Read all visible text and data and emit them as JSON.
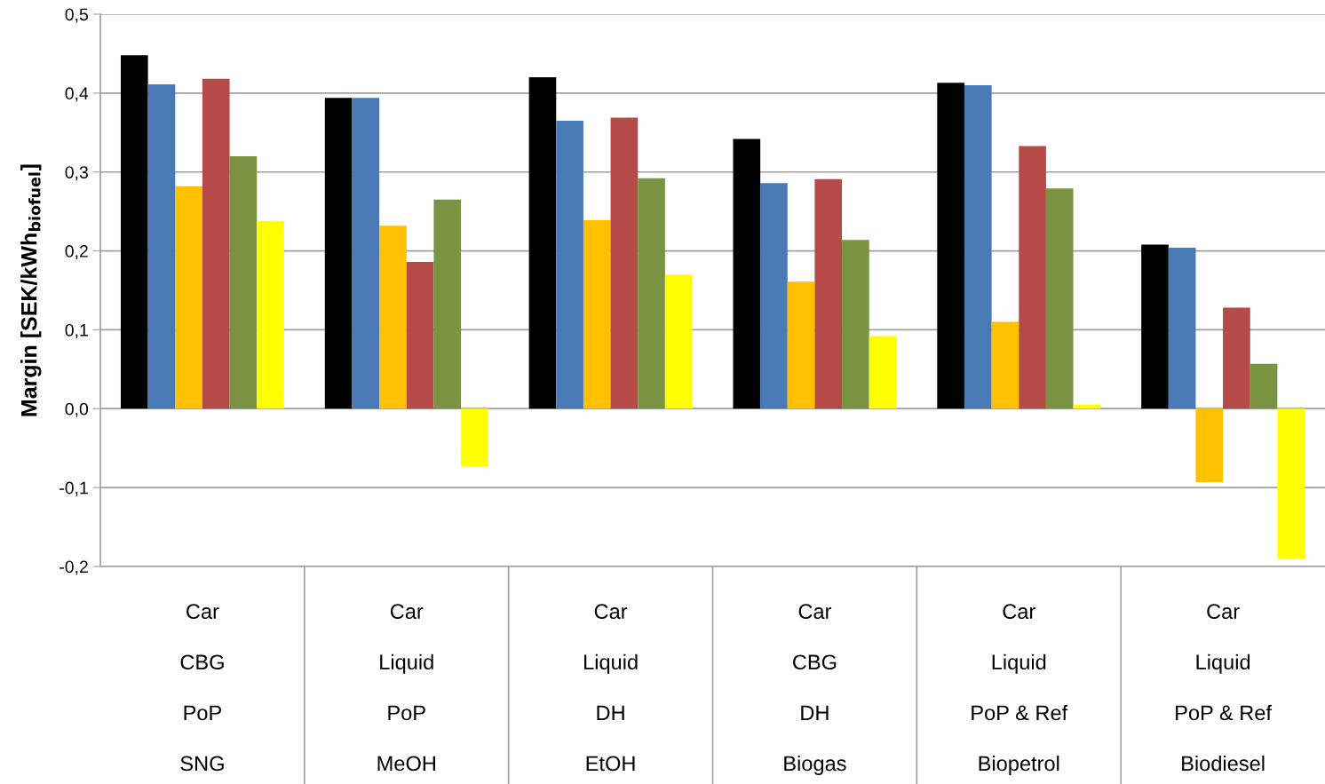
{
  "chart_data": {
    "type": "bar",
    "ylabel": "Margin [SEK/kWh$_{biofuel}$]",
    "categories": [
      "Car\nCBG\nPoP\nSNG",
      "Car\nLiquid\nPoP\nMeOH",
      "Car\nLiquid\nDH\nEtOH",
      "Car\nCBG\nDH\nBiogas",
      "Car\nLiquid\nPoP & Ref\nBiopetrol",
      "Car\nLiquid\nPoP & Ref\nBiodiesel"
    ],
    "series": [
      {
        "color": "#000000",
        "values": [
          0.448,
          0.394,
          0.42,
          0.342,
          0.413,
          0.208
        ]
      },
      {
        "color": "#4a7ab5",
        "values": [
          0.411,
          0.394,
          0.365,
          0.286,
          0.41,
          0.204
        ]
      },
      {
        "color": "#ffc000",
        "values": [
          0.282,
          0.232,
          0.239,
          0.161,
          0.11,
          -0.093
        ]
      },
      {
        "color": "#b54a48",
        "values": [
          0.418,
          0.186,
          0.369,
          0.291,
          0.333,
          0.128
        ]
      },
      {
        "color": "#7a9443",
        "values": [
          0.32,
          0.265,
          0.292,
          0.214,
          0.279,
          0.057
        ]
      },
      {
        "color": "#ffff00",
        "values": [
          0.238,
          -0.073,
          0.17,
          0.092,
          0.005,
          -0.19
        ]
      }
    ],
    "ylim": [
      -0.2,
      0.5
    ],
    "yticks": [
      {
        "value": -0.2,
        "label": "-0,2"
      },
      {
        "value": -0.1,
        "label": "-0,1"
      },
      {
        "value": 0.0,
        "label": "0,0"
      },
      {
        "value": 0.1,
        "label": "0,1"
      },
      {
        "value": 0.2,
        "label": "0,2"
      },
      {
        "value": 0.3,
        "label": "0,3"
      },
      {
        "value": 0.4,
        "label": "0,4"
      },
      {
        "value": 0.5,
        "label": "0,5"
      }
    ],
    "grid": "y",
    "legend": false
  }
}
